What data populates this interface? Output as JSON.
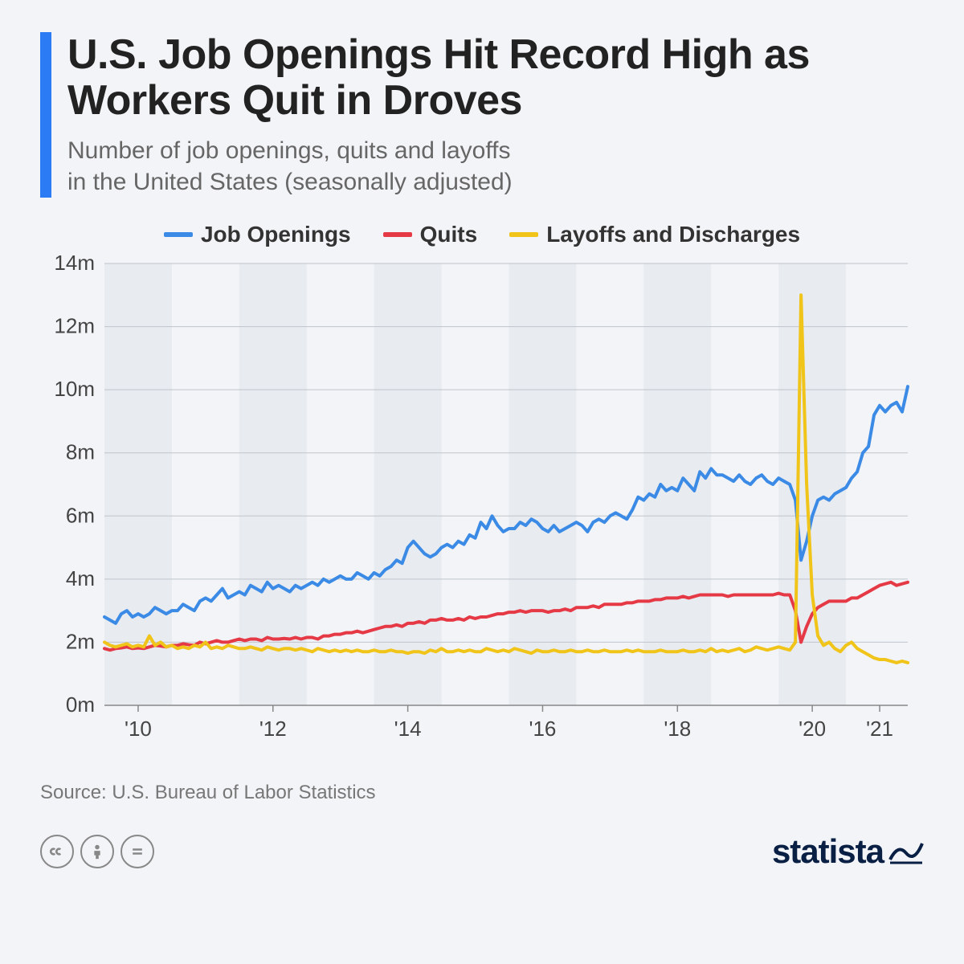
{
  "title": "U.S. Job Openings Hit Record High as Workers Quit in Droves",
  "subtitle": "Number of job openings, quits and layoffs\nin the United States (seasonally adjusted)",
  "source": "Source: U.S. Bureau of Labor Statistics",
  "brand": "statista",
  "legend": [
    {
      "label": "Job Openings",
      "color": "#3b8be6"
    },
    {
      "label": "Quits",
      "color": "#e63946"
    },
    {
      "label": "Layoffs and Discharges",
      "color": "#f0c419"
    }
  ],
  "chart": {
    "type": "line",
    "background_color": "#f2f4f7",
    "band_color": "#e8ebf0",
    "grid_color": "#bfc5cc",
    "axis_color": "#888",
    "text_color": "#444",
    "line_width": 4,
    "y": {
      "min": 0,
      "max": 14,
      "step": 2,
      "unit": "m",
      "label_fontsize": 26
    },
    "x": {
      "min": 0,
      "max": 143,
      "ticks": [
        {
          "pos": 6,
          "label": "'10"
        },
        {
          "pos": 30,
          "label": "'12"
        },
        {
          "pos": 54,
          "label": "'14"
        },
        {
          "pos": 78,
          "label": "'16"
        },
        {
          "pos": 102,
          "label": "'18"
        },
        {
          "pos": 126,
          "label": "'20"
        },
        {
          "pos": 138,
          "label": "'21"
        }
      ],
      "label_fontsize": 26
    },
    "bands": [
      {
        "start": 0,
        "end": 12
      },
      {
        "start": 24,
        "end": 36
      },
      {
        "start": 48,
        "end": 60
      },
      {
        "start": 72,
        "end": 84
      },
      {
        "start": 96,
        "end": 108
      },
      {
        "start": 120,
        "end": 132
      }
    ],
    "series": [
      {
        "name": "Job Openings",
        "color": "#3b8be6",
        "values": [
          2.8,
          2.7,
          2.6,
          2.9,
          3.0,
          2.8,
          2.9,
          2.8,
          2.9,
          3.1,
          3.0,
          2.9,
          3.0,
          3.0,
          3.2,
          3.1,
          3.0,
          3.3,
          3.4,
          3.3,
          3.5,
          3.7,
          3.4,
          3.5,
          3.6,
          3.5,
          3.8,
          3.7,
          3.6,
          3.9,
          3.7,
          3.8,
          3.7,
          3.6,
          3.8,
          3.7,
          3.8,
          3.9,
          3.8,
          4.0,
          3.9,
          4.0,
          4.1,
          4.0,
          4.0,
          4.2,
          4.1,
          4.0,
          4.2,
          4.1,
          4.3,
          4.4,
          4.6,
          4.5,
          5.0,
          5.2,
          5.0,
          4.8,
          4.7,
          4.8,
          5.0,
          5.1,
          5.0,
          5.2,
          5.1,
          5.4,
          5.3,
          5.8,
          5.6,
          6.0,
          5.7,
          5.5,
          5.6,
          5.6,
          5.8,
          5.7,
          5.9,
          5.8,
          5.6,
          5.5,
          5.7,
          5.5,
          5.6,
          5.7,
          5.8,
          5.7,
          5.5,
          5.8,
          5.9,
          5.8,
          6.0,
          6.1,
          6.0,
          5.9,
          6.2,
          6.6,
          6.5,
          6.7,
          6.6,
          7.0,
          6.8,
          6.9,
          6.8,
          7.2,
          7.0,
          6.8,
          7.4,
          7.2,
          7.5,
          7.3,
          7.3,
          7.2,
          7.1,
          7.3,
          7.1,
          7.0,
          7.2,
          7.3,
          7.1,
          7.0,
          7.2,
          7.1,
          7.0,
          6.5,
          4.6,
          5.2,
          6.0,
          6.5,
          6.6,
          6.5,
          6.7,
          6.8,
          6.9,
          7.2,
          7.4,
          8.0,
          8.2,
          9.2,
          9.5,
          9.3,
          9.5,
          9.6,
          9.3,
          10.1
        ]
      },
      {
        "name": "Quits",
        "color": "#e63946",
        "values": [
          1.8,
          1.75,
          1.8,
          1.82,
          1.85,
          1.8,
          1.82,
          1.8,
          1.85,
          1.9,
          1.88,
          1.85,
          1.9,
          1.9,
          1.95,
          1.92,
          1.9,
          2.0,
          1.95,
          2.0,
          2.05,
          2.0,
          2.0,
          2.05,
          2.1,
          2.05,
          2.1,
          2.1,
          2.05,
          2.15,
          2.1,
          2.1,
          2.12,
          2.1,
          2.15,
          2.1,
          2.15,
          2.15,
          2.1,
          2.2,
          2.2,
          2.25,
          2.25,
          2.3,
          2.3,
          2.35,
          2.3,
          2.35,
          2.4,
          2.45,
          2.5,
          2.5,
          2.55,
          2.5,
          2.6,
          2.6,
          2.65,
          2.6,
          2.7,
          2.7,
          2.75,
          2.7,
          2.7,
          2.75,
          2.7,
          2.8,
          2.75,
          2.8,
          2.8,
          2.85,
          2.9,
          2.9,
          2.95,
          2.95,
          3.0,
          2.95,
          3.0,
          3.0,
          3.0,
          2.95,
          3.0,
          3.0,
          3.05,
          3.0,
          3.1,
          3.1,
          3.1,
          3.15,
          3.1,
          3.2,
          3.2,
          3.2,
          3.2,
          3.25,
          3.25,
          3.3,
          3.3,
          3.3,
          3.35,
          3.35,
          3.4,
          3.4,
          3.4,
          3.45,
          3.4,
          3.45,
          3.5,
          3.5,
          3.5,
          3.5,
          3.5,
          3.45,
          3.5,
          3.5,
          3.5,
          3.5,
          3.5,
          3.5,
          3.5,
          3.5,
          3.55,
          3.5,
          3.5,
          3.0,
          2.0,
          2.5,
          2.9,
          3.1,
          3.2,
          3.3,
          3.3,
          3.3,
          3.3,
          3.4,
          3.4,
          3.5,
          3.6,
          3.7,
          3.8,
          3.85,
          3.9,
          3.8,
          3.85,
          3.9
        ]
      },
      {
        "name": "Layoffs and Discharges",
        "color": "#f0c419",
        "values": [
          2.0,
          1.9,
          1.85,
          1.9,
          1.95,
          1.85,
          1.9,
          1.85,
          2.2,
          1.9,
          2.0,
          1.85,
          1.9,
          1.8,
          1.85,
          1.8,
          1.9,
          1.85,
          2.0,
          1.8,
          1.85,
          1.8,
          1.9,
          1.85,
          1.8,
          1.8,
          1.85,
          1.8,
          1.75,
          1.85,
          1.8,
          1.75,
          1.8,
          1.8,
          1.75,
          1.8,
          1.75,
          1.7,
          1.8,
          1.75,
          1.7,
          1.75,
          1.7,
          1.75,
          1.7,
          1.75,
          1.7,
          1.7,
          1.75,
          1.7,
          1.7,
          1.75,
          1.7,
          1.7,
          1.65,
          1.7,
          1.7,
          1.65,
          1.75,
          1.7,
          1.8,
          1.7,
          1.7,
          1.75,
          1.7,
          1.75,
          1.7,
          1.7,
          1.8,
          1.75,
          1.7,
          1.75,
          1.7,
          1.8,
          1.75,
          1.7,
          1.65,
          1.75,
          1.7,
          1.7,
          1.75,
          1.7,
          1.7,
          1.75,
          1.7,
          1.7,
          1.75,
          1.7,
          1.7,
          1.75,
          1.7,
          1.7,
          1.7,
          1.75,
          1.7,
          1.75,
          1.7,
          1.7,
          1.7,
          1.75,
          1.7,
          1.7,
          1.7,
          1.75,
          1.7,
          1.7,
          1.75,
          1.7,
          1.8,
          1.7,
          1.75,
          1.7,
          1.75,
          1.8,
          1.7,
          1.75,
          1.85,
          1.8,
          1.75,
          1.8,
          1.85,
          1.8,
          1.75,
          2.0,
          13.0,
          7.0,
          3.5,
          2.2,
          1.9,
          2.0,
          1.8,
          1.7,
          1.9,
          2.0,
          1.8,
          1.7,
          1.6,
          1.5,
          1.45,
          1.45,
          1.4,
          1.35,
          1.4,
          1.35
        ]
      }
    ]
  },
  "colors": {
    "accent": "#2b7bf4",
    "title": "#222222",
    "subtitle": "#666666",
    "source": "#777777",
    "brand": "#0a1f44",
    "background": "#f2f4f7"
  }
}
